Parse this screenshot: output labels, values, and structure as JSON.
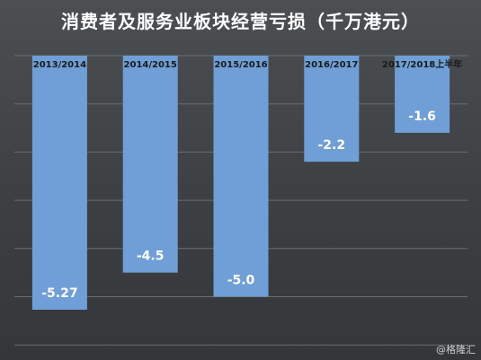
{
  "chart_data": {
    "type": "bar",
    "title": "消费者及服务业板块经营亏损（千万港元）",
    "categories": [
      "2013/2014",
      "2014/2015",
      "2015/2016",
      "2016/2017",
      "2017/2018上半年"
    ],
    "values": [
      -5.27,
      -4.5,
      -5.0,
      -2.2,
      -1.6
    ],
    "data_labels": [
      "-5.27",
      "-4.5",
      "-5.0",
      "-2.2",
      "-1.6"
    ],
    "ylim": [
      -6,
      0
    ],
    "grid": true,
    "bar_color": "#6f9fd6",
    "background_color": "#3f4245",
    "axis_label_position": "top"
  },
  "watermark": "@格隆汇"
}
